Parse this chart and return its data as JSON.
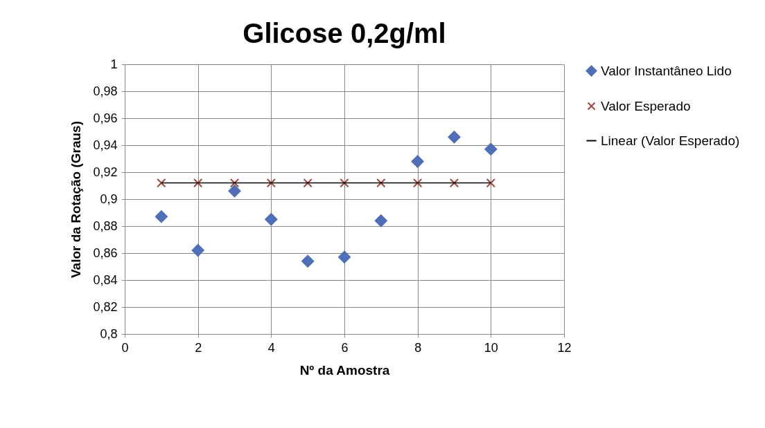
{
  "chart_data": {
    "type": "scatter",
    "title": "Glicose 0,2g/ml",
    "xlabel": "Nº da Amostra",
    "ylabel": "Valor da Rotação (Graus)",
    "x": [
      1,
      2,
      3,
      4,
      5,
      6,
      7,
      8,
      9,
      10
    ],
    "series": [
      {
        "name": "Valor Instantâneo Lido",
        "color": "#4f6fb8",
        "marker": "diamond",
        "values": [
          0.887,
          0.862,
          0.906,
          0.885,
          0.854,
          0.857,
          0.884,
          0.928,
          0.946,
          0.937
        ]
      },
      {
        "name": "Valor Esperado",
        "color": "#a0463e",
        "marker": "cross",
        "values": [
          0.912,
          0.912,
          0.912,
          0.912,
          0.912,
          0.912,
          0.912,
          0.912,
          0.912,
          0.912
        ]
      },
      {
        "name": "Linear (Valor Esperado)",
        "type": "line",
        "color": "#000000",
        "line_style": "solid",
        "values": [
          0.912,
          0.912,
          0.912,
          0.912,
          0.912,
          0.912,
          0.912,
          0.912,
          0.912,
          0.912
        ]
      }
    ],
    "xlim": [
      0,
      12
    ],
    "xticks": [
      {
        "value": 0,
        "label": "0"
      },
      {
        "value": 2,
        "label": "2"
      },
      {
        "value": 4,
        "label": "4"
      },
      {
        "value": 6,
        "label": "6"
      },
      {
        "value": 8,
        "label": "8"
      },
      {
        "value": 10,
        "label": "10"
      },
      {
        "value": 12,
        "label": "12"
      }
    ],
    "ylim": [
      0.8,
      1
    ],
    "yticks": [
      {
        "value": 0.8,
        "label": "0,8"
      },
      {
        "value": 0.82,
        "label": "0,82"
      },
      {
        "value": 0.84,
        "label": "0,84"
      },
      {
        "value": 0.86,
        "label": "0,86"
      },
      {
        "value": 0.88,
        "label": "0,88"
      },
      {
        "value": 0.9,
        "label": "0,9"
      },
      {
        "value": 0.92,
        "label": "0,92"
      },
      {
        "value": 0.94,
        "label": "0,94"
      },
      {
        "value": 0.96,
        "label": "0,96"
      },
      {
        "value": 0.98,
        "label": "0,98"
      },
      {
        "value": 1,
        "label": "1"
      }
    ],
    "grid": true,
    "legend": "right"
  }
}
